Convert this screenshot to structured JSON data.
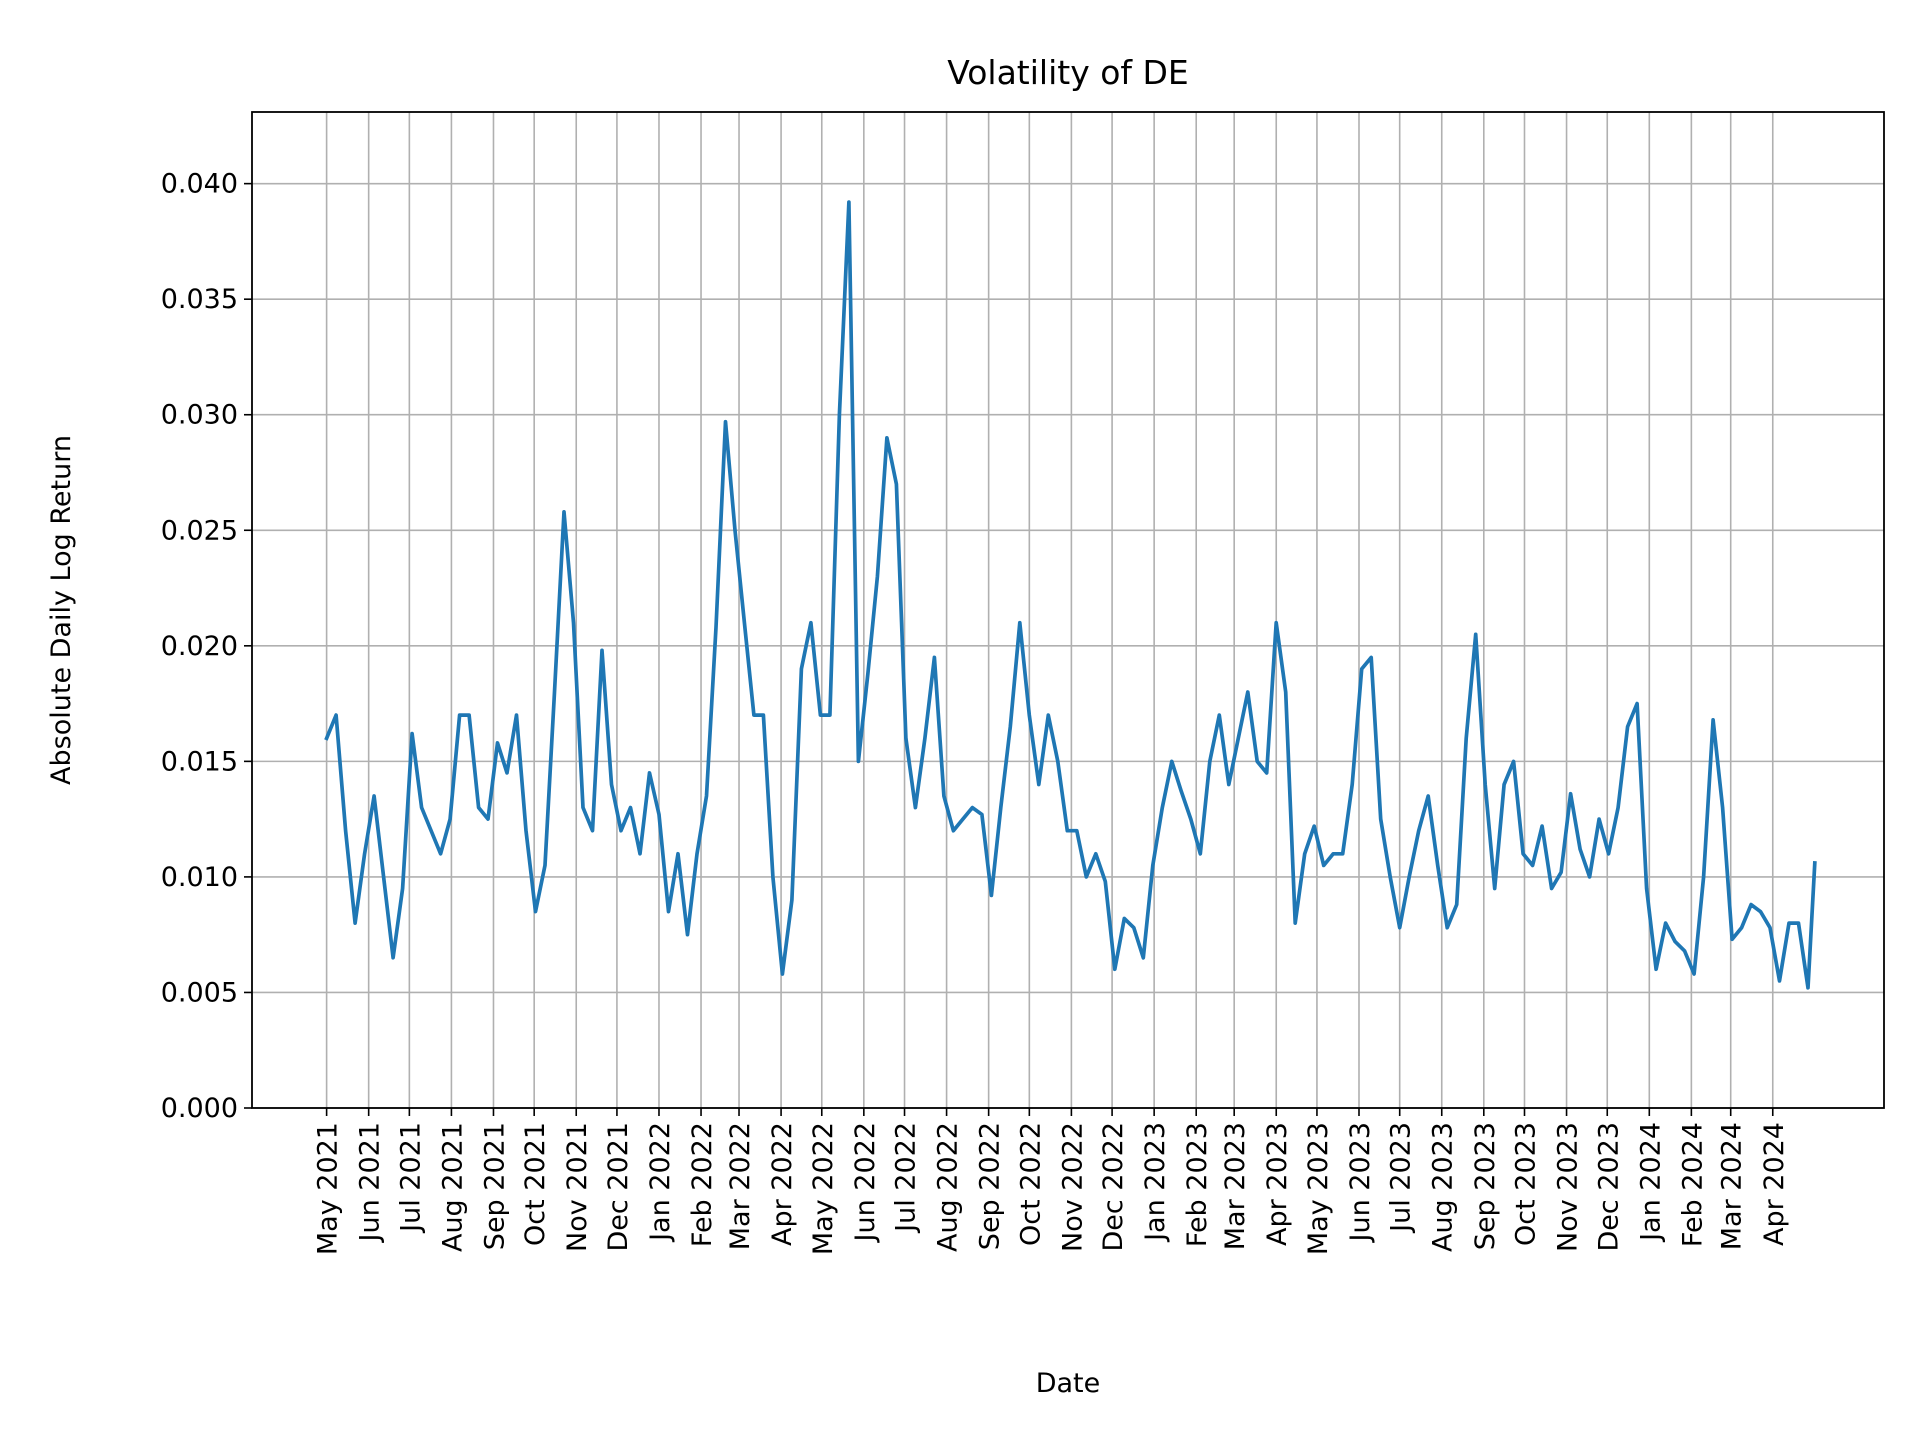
{
  "chart_data": {
    "type": "line",
    "title": "Volatility of DE",
    "xlabel": "Date",
    "ylabel": "Absolute Daily Log Return",
    "ylim": [
      0,
      0.0431
    ],
    "xlim": [
      "2021-03-07",
      "2024-06-22"
    ],
    "grid": true,
    "line_color": "#1f77b4",
    "y_ticks": [
      "0.000",
      "0.005",
      "0.010",
      "0.015",
      "0.020",
      "0.025",
      "0.030",
      "0.035",
      "0.040"
    ],
    "x_ticks": [
      "2021-05-01",
      "2021-06-01",
      "2021-07-01",
      "2021-08-01",
      "2021-09-01",
      "2021-10-01",
      "2021-11-01",
      "2021-12-01",
      "2022-01-01",
      "2022-02-01",
      "2022-03-01",
      "2022-04-01",
      "2022-05-01",
      "2022-06-01",
      "2022-07-01",
      "2022-08-01",
      "2022-09-01",
      "2022-10-01",
      "2022-11-01",
      "2022-12-01",
      "2023-01-01",
      "2023-02-01",
      "2023-03-01",
      "2023-04-01",
      "2023-05-01",
      "2023-06-01",
      "2023-07-01",
      "2023-08-01",
      "2023-09-01",
      "2023-10-01",
      "2023-11-01",
      "2023-12-01",
      "2024-01-01",
      "2024-02-01",
      "2024-03-01",
      "2024-04-01"
    ],
    "x_tick_labels": [
      "May 2021",
      "Jun 2021",
      "Jul 2021",
      "Aug 2021",
      "Sep 2021",
      "Oct 2021",
      "Nov 2021",
      "Dec 2021",
      "Jan 2022",
      "Feb 2022",
      "Mar 2022",
      "Apr 2022",
      "May 2022",
      "Jun 2022",
      "Jul 2022",
      "Aug 2022",
      "Sep 2022",
      "Oct 2022",
      "Nov 2022",
      "Dec 2022",
      "Jan 2023",
      "Feb 2023",
      "Mar 2023",
      "Apr 2023",
      "May 2023",
      "Jun 2023",
      "Jul 2023",
      "Aug 2023",
      "Sep 2023",
      "Oct 2023",
      "Nov 2023",
      "Dec 2023",
      "Jan 2024",
      "Feb 2024",
      "Mar 2024",
      "Apr 2024"
    ],
    "series": [
      {
        "x": [
          "2021-05-01",
          "2021-05-08",
          "2021-05-15",
          "2021-05-22",
          "2021-05-29",
          "2021-06-05",
          "2021-06-12",
          "2021-06-19",
          "2021-06-26",
          "2021-07-03",
          "2021-07-10",
          "2021-07-17",
          "2021-07-24",
          "2021-07-31",
          "2021-08-07",
          "2021-08-14",
          "2021-08-21",
          "2021-08-28",
          "2021-09-04",
          "2021-09-11",
          "2021-09-18",
          "2021-09-25",
          "2021-10-02",
          "2021-10-09",
          "2021-10-16",
          "2021-10-23",
          "2021-10-30",
          "2021-11-06",
          "2021-11-13",
          "2021-11-20",
          "2021-11-27",
          "2021-12-04",
          "2021-12-11",
          "2021-12-18",
          "2021-12-25",
          "2022-01-01",
          "2022-01-08",
          "2022-01-15",
          "2022-01-22",
          "2022-01-29",
          "2022-02-05",
          "2022-02-12",
          "2022-02-19",
          "2022-02-26",
          "2022-03-05",
          "2022-03-12",
          "2022-03-19",
          "2022-03-26",
          "2022-04-02",
          "2022-04-09",
          "2022-04-16",
          "2022-04-23",
          "2022-04-30",
          "2022-05-07",
          "2022-05-14",
          "2022-05-21",
          "2022-05-28",
          "2022-06-04",
          "2022-06-11",
          "2022-06-18",
          "2022-06-25",
          "2022-07-02",
          "2022-07-09",
          "2022-07-16",
          "2022-07-23",
          "2022-07-30",
          "2022-08-06",
          "2022-08-13",
          "2022-08-20",
          "2022-08-27",
          "2022-09-03",
          "2022-09-10",
          "2022-09-17",
          "2022-09-24",
          "2022-10-01",
          "2022-10-08",
          "2022-10-15",
          "2022-10-22",
          "2022-10-29",
          "2022-11-05",
          "2022-11-12",
          "2022-11-19",
          "2022-11-26",
          "2022-12-03",
          "2022-12-10",
          "2022-12-17",
          "2022-12-24",
          "2022-12-31",
          "2023-01-07",
          "2023-01-14",
          "2023-01-21",
          "2023-01-28",
          "2023-02-04",
          "2023-02-11",
          "2023-02-18",
          "2023-02-25",
          "2023-03-04",
          "2023-03-11",
          "2023-03-18",
          "2023-03-25",
          "2023-04-01",
          "2023-04-08",
          "2023-04-15",
          "2023-04-22",
          "2023-04-29",
          "2023-05-06",
          "2023-05-13",
          "2023-05-20",
          "2023-05-27",
          "2023-06-03",
          "2023-06-10",
          "2023-06-17",
          "2023-06-24",
          "2023-07-01",
          "2023-07-08",
          "2023-07-15",
          "2023-07-22",
          "2023-07-29",
          "2023-08-05",
          "2023-08-12",
          "2023-08-19",
          "2023-08-26",
          "2023-09-02",
          "2023-09-09",
          "2023-09-16",
          "2023-09-23",
          "2023-09-30",
          "2023-10-07",
          "2023-10-14",
          "2023-10-21",
          "2023-10-28",
          "2023-11-04",
          "2023-11-11",
          "2023-11-18",
          "2023-11-25",
          "2023-12-02",
          "2023-12-09",
          "2023-12-16",
          "2023-12-23",
          "2023-12-30",
          "2024-01-06",
          "2024-01-13",
          "2024-01-20",
          "2024-01-27",
          "2024-02-03",
          "2024-02-10",
          "2024-02-17",
          "2024-02-24",
          "2024-03-02",
          "2024-03-09",
          "2024-03-16",
          "2024-03-23",
          "2024-03-30",
          "2024-04-06",
          "2024-04-13",
          "2024-04-20",
          "2024-04-27",
          "2024-05-02"
        ],
        "y": [
          0.016,
          0.017,
          0.012,
          0.008,
          0.011,
          0.0135,
          0.01,
          0.0065,
          0.0095,
          0.0162,
          0.013,
          0.012,
          0.011,
          0.0125,
          0.017,
          0.017,
          0.013,
          0.0125,
          0.0158,
          0.0145,
          0.017,
          0.012,
          0.0085,
          0.0105,
          0.018,
          0.0258,
          0.021,
          0.013,
          0.012,
          0.0198,
          0.014,
          0.012,
          0.013,
          0.011,
          0.0145,
          0.0127,
          0.0085,
          0.011,
          0.0075,
          0.011,
          0.0135,
          0.0208,
          0.0297,
          0.025,
          0.021,
          0.017,
          0.017,
          0.01,
          0.0058,
          0.009,
          0.019,
          0.021,
          0.017,
          0.017,
          0.03,
          0.0392,
          0.015,
          0.0188,
          0.023,
          0.029,
          0.027,
          0.016,
          0.013,
          0.016,
          0.0195,
          0.0135,
          0.012,
          0.0125,
          0.013,
          0.0127,
          0.0092,
          0.013,
          0.0165,
          0.021,
          0.017,
          0.014,
          0.017,
          0.015,
          0.012,
          0.012,
          0.01,
          0.011,
          0.0098,
          0.006,
          0.0082,
          0.0078,
          0.0065,
          0.0105,
          0.013,
          0.015,
          0.0137,
          0.0125,
          0.011,
          0.015,
          0.017,
          0.014,
          0.016,
          0.018,
          0.015,
          0.0145,
          0.021,
          0.018,
          0.008,
          0.011,
          0.0122,
          0.0105,
          0.011,
          0.011,
          0.014,
          0.019,
          0.0195,
          0.0125,
          0.01,
          0.0078,
          0.01,
          0.012,
          0.0135,
          0.0105,
          0.0078,
          0.0088,
          0.016,
          0.0205,
          0.014,
          0.0095,
          0.014,
          0.015,
          0.011,
          0.0105,
          0.0122,
          0.0095,
          0.0102,
          0.0136,
          0.0112,
          0.01,
          0.0125,
          0.011,
          0.013,
          0.0165,
          0.0175,
          0.0095,
          0.006,
          0.008,
          0.0072,
          0.0068,
          0.0058,
          0.01,
          0.0168,
          0.013,
          0.0073,
          0.0078,
          0.0088,
          0.0085,
          0.0078,
          0.0055,
          0.008,
          0.008,
          0.0052,
          0.0106
        ]
      }
    ]
  }
}
